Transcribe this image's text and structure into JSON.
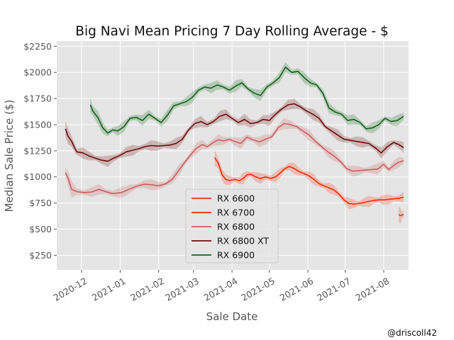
{
  "chart_data": {
    "type": "line",
    "title": "Big Navi Mean Pricing 7 Day Rolling Average - $",
    "xlabel": "Sale Date",
    "ylabel": "Median Sale Price ($)",
    "credit": "@driscoll42",
    "xlim": [
      "2020-11-11",
      "2021-08-21"
    ],
    "ylim": [
      110,
      2300
    ],
    "x_ticks": [
      {
        "date": "2020-12-01",
        "label": "2020-12"
      },
      {
        "date": "2021-01-01",
        "label": "2021-01"
      },
      {
        "date": "2021-02-01",
        "label": "2021-02"
      },
      {
        "date": "2021-03-01",
        "label": "2021-03"
      },
      {
        "date": "2021-04-01",
        "label": "2021-04"
      },
      {
        "date": "2021-05-01",
        "label": "2021-05"
      },
      {
        "date": "2021-06-01",
        "label": "2021-06"
      },
      {
        "date": "2021-07-01",
        "label": "2021-07"
      },
      {
        "date": "2021-08-01",
        "label": "2021-08"
      }
    ],
    "y_ticks": [
      {
        "value": 250,
        "label": "$250"
      },
      {
        "value": 500,
        "label": "$500"
      },
      {
        "value": 750,
        "label": "$750"
      },
      {
        "value": 1000,
        "label": "$1000"
      },
      {
        "value": 1250,
        "label": "$1250"
      },
      {
        "value": 1500,
        "label": "$1500"
      },
      {
        "value": 1750,
        "label": "$1750"
      },
      {
        "value": 2000,
        "label": "$2000"
      },
      {
        "value": 2250,
        "label": "$2250"
      }
    ],
    "grid": true,
    "legend_position": "lower-center",
    "series": [
      {
        "name": "RX 6600",
        "color": "#e0392b",
        "segments": [
          [
            [
              "2021-08-13",
              640
            ],
            [
              "2021-08-14",
              632
            ],
            [
              "2021-08-15",
              630
            ],
            [
              "2021-08-16",
              638
            ],
            [
              "2021-08-17",
              635
            ]
          ]
        ]
      },
      {
        "name": "RX 6700",
        "color": "#ff2a00",
        "segments": [
          [
            [
              "2021-03-18",
              1185
            ],
            [
              "2021-03-21",
              1130
            ],
            [
              "2021-03-24",
              1020
            ],
            [
              "2021-03-27",
              975
            ],
            [
              "2021-03-30",
              965
            ],
            [
              "2021-04-03",
              975
            ],
            [
              "2021-04-07",
              965
            ],
            [
              "2021-04-10",
              985
            ],
            [
              "2021-04-13",
              1020
            ],
            [
              "2021-04-16",
              1025
            ],
            [
              "2021-04-20",
              1000
            ],
            [
              "2021-04-24",
              985
            ],
            [
              "2021-04-28",
              1000
            ],
            [
              "2021-05-02",
              985
            ],
            [
              "2021-05-06",
              1000
            ],
            [
              "2021-05-10",
              1040
            ],
            [
              "2021-05-13",
              1075
            ],
            [
              "2021-05-17",
              1100
            ],
            [
              "2021-05-21",
              1080
            ],
            [
              "2021-05-25",
              1050
            ],
            [
              "2021-05-29",
              1030
            ],
            [
              "2021-06-02",
              1010
            ],
            [
              "2021-06-06",
              975
            ],
            [
              "2021-06-10",
              935
            ],
            [
              "2021-06-14",
              915
            ],
            [
              "2021-06-18",
              895
            ],
            [
              "2021-06-22",
              875
            ],
            [
              "2021-06-26",
              835
            ],
            [
              "2021-06-30",
              780
            ],
            [
              "2021-07-04",
              745
            ],
            [
              "2021-07-08",
              740
            ],
            [
              "2021-07-12",
              745
            ],
            [
              "2021-07-16",
              755
            ],
            [
              "2021-07-20",
              765
            ],
            [
              "2021-07-24",
              775
            ],
            [
              "2021-07-28",
              780
            ],
            [
              "2021-08-01",
              780
            ],
            [
              "2021-08-05",
              785
            ],
            [
              "2021-08-09",
              790
            ],
            [
              "2021-08-13",
              795
            ],
            [
              "2021-08-17",
              805
            ]
          ]
        ]
      },
      {
        "name": "RX 6800",
        "color": "#cd5c5c",
        "segments": [
          [
            [
              "2020-11-18",
              1040
            ],
            [
              "2020-11-20",
              990
            ],
            [
              "2020-11-23",
              880
            ],
            [
              "2020-11-27",
              860
            ],
            [
              "2020-12-03",
              850
            ],
            [
              "2020-12-09",
              855
            ],
            [
              "2020-12-15",
              880
            ],
            [
              "2020-12-20",
              860
            ],
            [
              "2020-12-26",
              840
            ],
            [
              "2021-01-02",
              850
            ],
            [
              "2021-01-08",
              880
            ],
            [
              "2021-01-14",
              910
            ],
            [
              "2021-01-20",
              930
            ],
            [
              "2021-01-26",
              925
            ],
            [
              "2021-02-01",
              915
            ],
            [
              "2021-02-07",
              935
            ],
            [
              "2021-02-12",
              980
            ],
            [
              "2021-02-17",
              1060
            ],
            [
              "2021-02-22",
              1140
            ],
            [
              "2021-02-26",
              1200
            ],
            [
              "2021-03-03",
              1270
            ],
            [
              "2021-03-08",
              1310
            ],
            [
              "2021-03-12",
              1290
            ],
            [
              "2021-03-17",
              1330
            ],
            [
              "2021-03-21",
              1355
            ],
            [
              "2021-03-25",
              1345
            ],
            [
              "2021-03-30",
              1360
            ],
            [
              "2021-04-03",
              1340
            ],
            [
              "2021-04-08",
              1320
            ],
            [
              "2021-04-13",
              1380
            ],
            [
              "2021-04-18",
              1355
            ],
            [
              "2021-04-23",
              1335
            ],
            [
              "2021-04-28",
              1360
            ],
            [
              "2021-05-03",
              1385
            ],
            [
              "2021-05-08",
              1470
            ],
            [
              "2021-05-13",
              1510
            ],
            [
              "2021-05-18",
              1500
            ],
            [
              "2021-05-23",
              1480
            ],
            [
              "2021-05-28",
              1440
            ],
            [
              "2021-06-02",
              1400
            ],
            [
              "2021-06-07",
              1340
            ],
            [
              "2021-06-12",
              1290
            ],
            [
              "2021-06-17",
              1240
            ],
            [
              "2021-06-22",
              1200
            ],
            [
              "2021-06-27",
              1150
            ],
            [
              "2021-07-02",
              1080
            ],
            [
              "2021-07-07",
              1055
            ],
            [
              "2021-07-12",
              1060
            ],
            [
              "2021-07-17",
              1065
            ],
            [
              "2021-07-22",
              1070
            ],
            [
              "2021-07-27",
              1075
            ],
            [
              "2021-08-01",
              1120
            ],
            [
              "2021-08-05",
              1070
            ],
            [
              "2021-08-09",
              1110
            ],
            [
              "2021-08-13",
              1140
            ],
            [
              "2021-08-17",
              1155
            ]
          ]
        ]
      },
      {
        "name": "RX 6800 XT",
        "color": "#6e0a0a",
        "segments": [
          [
            [
              "2020-11-18",
              1460
            ],
            [
              "2020-11-20",
              1390
            ],
            [
              "2020-11-23",
              1340
            ],
            [
              "2020-11-27",
              1240
            ],
            [
              "2020-12-02",
              1230
            ],
            [
              "2020-12-07",
              1200
            ],
            [
              "2020-12-12",
              1180
            ],
            [
              "2020-12-17",
              1160
            ],
            [
              "2020-12-22",
              1150
            ],
            [
              "2020-12-26",
              1175
            ],
            [
              "2020-12-31",
              1200
            ],
            [
              "2021-01-06",
              1240
            ],
            [
              "2021-01-11",
              1255
            ],
            [
              "2021-01-16",
              1270
            ],
            [
              "2021-01-21",
              1290
            ],
            [
              "2021-01-26",
              1300
            ],
            [
              "2021-01-31",
              1295
            ],
            [
              "2021-02-05",
              1300
            ],
            [
              "2021-02-10",
              1305
            ],
            [
              "2021-02-15",
              1320
            ],
            [
              "2021-02-20",
              1360
            ],
            [
              "2021-02-25",
              1450
            ],
            [
              "2021-03-02",
              1510
            ],
            [
              "2021-03-07",
              1530
            ],
            [
              "2021-03-12",
              1500
            ],
            [
              "2021-03-17",
              1530
            ],
            [
              "2021-03-22",
              1580
            ],
            [
              "2021-03-27",
              1600
            ],
            [
              "2021-04-01",
              1560
            ],
            [
              "2021-04-06",
              1520
            ],
            [
              "2021-04-11",
              1550
            ],
            [
              "2021-04-16",
              1510
            ],
            [
              "2021-04-21",
              1520
            ],
            [
              "2021-04-26",
              1550
            ],
            [
              "2021-05-01",
              1540
            ],
            [
              "2021-05-06",
              1600
            ],
            [
              "2021-05-11",
              1650
            ],
            [
              "2021-05-16",
              1690
            ],
            [
              "2021-05-21",
              1700
            ],
            [
              "2021-05-26",
              1670
            ],
            [
              "2021-05-31",
              1630
            ],
            [
              "2021-06-05",
              1600
            ],
            [
              "2021-06-10",
              1560
            ],
            [
              "2021-06-15",
              1480
            ],
            [
              "2021-06-20",
              1440
            ],
            [
              "2021-06-25",
              1400
            ],
            [
              "2021-06-30",
              1360
            ],
            [
              "2021-07-05",
              1350
            ],
            [
              "2021-07-10",
              1340
            ],
            [
              "2021-07-15",
              1330
            ],
            [
              "2021-07-20",
              1320
            ],
            [
              "2021-07-25",
              1280
            ],
            [
              "2021-07-30",
              1230
            ],
            [
              "2021-08-04",
              1290
            ],
            [
              "2021-08-09",
              1330
            ],
            [
              "2021-08-13",
              1310
            ],
            [
              "2021-08-17",
              1280
            ]
          ]
        ]
      },
      {
        "name": "RX 6900",
        "color": "#0e6416",
        "segments": [
          [
            [
              "2020-12-08",
              1690
            ],
            [
              "2020-12-10",
              1630
            ],
            [
              "2020-12-14",
              1570
            ],
            [
              "2020-12-18",
              1470
            ],
            [
              "2020-12-22",
              1420
            ],
            [
              "2020-12-26",
              1450
            ],
            [
              "2020-12-30",
              1440
            ],
            [
              "2021-01-04",
              1480
            ],
            [
              "2021-01-09",
              1560
            ],
            [
              "2021-01-14",
              1570
            ],
            [
              "2021-01-19",
              1540
            ],
            [
              "2021-01-24",
              1600
            ],
            [
              "2021-01-29",
              1560
            ],
            [
              "2021-02-03",
              1520
            ],
            [
              "2021-02-08",
              1590
            ],
            [
              "2021-02-13",
              1680
            ],
            [
              "2021-02-18",
              1700
            ],
            [
              "2021-02-23",
              1720
            ],
            [
              "2021-02-28",
              1760
            ],
            [
              "2021-03-05",
              1830
            ],
            [
              "2021-03-10",
              1860
            ],
            [
              "2021-03-15",
              1850
            ],
            [
              "2021-03-20",
              1880
            ],
            [
              "2021-03-25",
              1860
            ],
            [
              "2021-03-30",
              1830
            ],
            [
              "2021-04-04",
              1870
            ],
            [
              "2021-04-09",
              1900
            ],
            [
              "2021-04-14",
              1840
            ],
            [
              "2021-04-19",
              1800
            ],
            [
              "2021-04-24",
              1780
            ],
            [
              "2021-04-29",
              1860
            ],
            [
              "2021-05-04",
              1900
            ],
            [
              "2021-05-09",
              1950
            ],
            [
              "2021-05-14",
              2050
            ],
            [
              "2021-05-19",
              2000
            ],
            [
              "2021-05-24",
              2010
            ],
            [
              "2021-05-29",
              1950
            ],
            [
              "2021-06-03",
              1900
            ],
            [
              "2021-06-08",
              1880
            ],
            [
              "2021-06-13",
              1800
            ],
            [
              "2021-06-18",
              1660
            ],
            [
              "2021-06-23",
              1620
            ],
            [
              "2021-06-28",
              1600
            ],
            [
              "2021-07-03",
              1540
            ],
            [
              "2021-07-08",
              1550
            ],
            [
              "2021-07-13",
              1520
            ],
            [
              "2021-07-18",
              1460
            ],
            [
              "2021-07-23",
              1470
            ],
            [
              "2021-07-28",
              1500
            ],
            [
              "2021-08-02",
              1560
            ],
            [
              "2021-08-07",
              1530
            ],
            [
              "2021-08-12",
              1540
            ],
            [
              "2021-08-17",
              1580
            ]
          ]
        ]
      }
    ]
  }
}
